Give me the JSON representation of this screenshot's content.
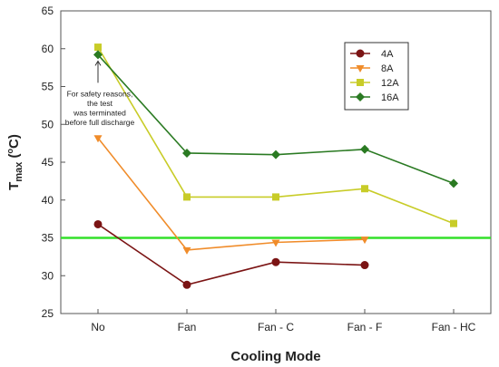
{
  "chart_data": {
    "type": "line",
    "categories": [
      "No",
      "Fan",
      "Fan - C",
      "Fan - F",
      "Fan - HC"
    ],
    "xlabel": "Cooling Mode",
    "ylabel": "T",
    "ylabel_sub": "max",
    "ylabel_unit_open": " (",
    "ylabel_unit_sup": "o",
    "ylabel_unit_close": "C)",
    "ylim": [
      25,
      65
    ],
    "yticks": [
      25,
      30,
      35,
      40,
      45,
      50,
      55,
      60,
      65
    ],
    "grid": false,
    "legend_position": "top-right",
    "reference_line": {
      "y": 35,
      "color": "#33e02a"
    },
    "series": [
      {
        "name": "4A",
        "color": "#7b1414",
        "marker": "circle",
        "values": [
          36.8,
          28.8,
          31.8,
          31.4,
          null
        ]
      },
      {
        "name": "8A",
        "color": "#f08c2a",
        "marker": "triangle",
        "values": [
          48.2,
          33.4,
          34.4,
          34.8,
          null
        ]
      },
      {
        "name": "12A",
        "color": "#c8cc28",
        "marker": "square",
        "values": [
          60.2,
          40.4,
          40.4,
          41.5,
          36.9
        ]
      },
      {
        "name": "16A",
        "color": "#2a7a22",
        "marker": "diamond",
        "values": [
          59.2,
          46.2,
          46.0,
          46.7,
          42.2
        ]
      }
    ],
    "annotation": {
      "lines": [
        "For safety reasons,",
        "the test",
        "was terminated",
        "before full discharge"
      ],
      "points_to": {
        "category": "No",
        "y": 59.2
      }
    }
  }
}
